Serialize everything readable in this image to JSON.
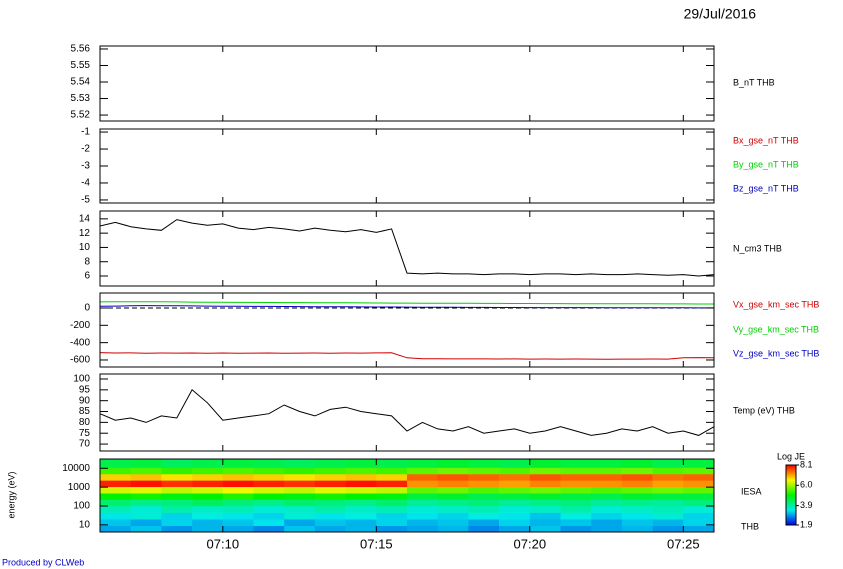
{
  "date": "29/Jul/2016",
  "footer": "Produced by CLWeb",
  "chart_data": [
    {
      "type": "line",
      "ylim": [
        5.5164,
        5.5618
      ],
      "yticks": [
        5.52,
        5.53,
        5.54,
        5.55,
        5.56
      ],
      "series": [
        {
          "name": "B_nT THB",
          "color": "#000000"
        }
      ]
    },
    {
      "type": "line",
      "ylim": [
        -5.18,
        -0.82
      ],
      "yticks": [
        -5,
        -4,
        -3,
        -2,
        -1
      ],
      "series": [
        {
          "name": "Bx_gse_nT THB",
          "color": "#d00000"
        },
        {
          "name": "By_gse_nT THB",
          "color": "#00d000"
        },
        {
          "name": "Bz_gse_nT THB",
          "color": "#0000c0"
        }
      ]
    },
    {
      "type": "line",
      "ylim": [
        4.6,
        15.1
      ],
      "yticks": [
        6,
        8,
        10,
        12,
        14
      ],
      "x": [
        426,
        426.5,
        427,
        427.5,
        428,
        428.5,
        429,
        429.5,
        430,
        430.5,
        431,
        431.5,
        432,
        432.5,
        433,
        433.5,
        434,
        434.5,
        435,
        435.5,
        436,
        436.5,
        437,
        437.5,
        438,
        438.5,
        439,
        439.5,
        440,
        440.5,
        441,
        441.5,
        442,
        442.5,
        443,
        443.5,
        444,
        444.5,
        445,
        445.5,
        446
      ],
      "series": [
        {
          "name": "N_cm3 THB",
          "color": "#000000",
          "values": [
            13.0,
            13.5,
            12.9,
            12.6,
            12.4,
            13.9,
            13.4,
            13.1,
            13.3,
            12.7,
            12.5,
            12.8,
            12.6,
            12.3,
            12.7,
            12.4,
            12.2,
            12.5,
            12.1,
            12.6,
            6.4,
            6.3,
            6.4,
            6.3,
            6.3,
            6.2,
            6.3,
            6.3,
            6.2,
            6.3,
            6.3,
            6.2,
            6.3,
            6.2,
            6.2,
            6.3,
            6.2,
            6.1,
            6.2,
            6.0,
            6.2
          ]
        }
      ]
    },
    {
      "type": "line",
      "ylim": [
        -681,
        173
      ],
      "yticks": [
        -600,
        -400,
        -200,
        0
      ],
      "reference_line": 0,
      "x": [
        426,
        426.5,
        427,
        427.5,
        428,
        428.5,
        429,
        429.5,
        430,
        430.5,
        431,
        431.5,
        432,
        432.5,
        433,
        433.5,
        434,
        434.5,
        435,
        435.5,
        436,
        436.5,
        437,
        437.5,
        438,
        438.5,
        439,
        439.5,
        440,
        440.5,
        441,
        441.5,
        442,
        442.5,
        443,
        443.5,
        444,
        444.5,
        445,
        445.5,
        446
      ],
      "series": [
        {
          "name": "Vx_gse_km_sec THB",
          "color": "#d00000",
          "values": [
            -515,
            -520,
            -518,
            -522,
            -520,
            -521,
            -519,
            -523,
            -520,
            -522,
            -521,
            -520,
            -523,
            -521,
            -519,
            -522,
            -520,
            -521,
            -518,
            -517,
            -575,
            -585,
            -586,
            -587,
            -588,
            -588,
            -589,
            -588,
            -590,
            -589,
            -590,
            -589,
            -590,
            -591,
            -590,
            -590,
            -589,
            -590,
            -575,
            -572,
            -575
          ]
        },
        {
          "name": "Vy_gse_km_sec THB",
          "color": "#00d000",
          "values": [
            70,
            72,
            73,
            72,
            71,
            70,
            68,
            67,
            66,
            65,
            64,
            63,
            62,
            62,
            61,
            60,
            60,
            59,
            58,
            57,
            56,
            55,
            55,
            54,
            54,
            53,
            53,
            52,
            52,
            51,
            51,
            50,
            50,
            49,
            49,
            48,
            48,
            47,
            47,
            46,
            46
          ]
        },
        {
          "name": "Vz_gse_km_sec THB",
          "color": "#0000c0",
          "values": [
            20,
            22,
            25,
            28,
            27,
            25,
            24,
            22,
            21,
            20,
            18,
            18,
            17,
            16,
            15,
            15,
            14,
            13,
            12,
            12,
            10,
            9,
            8,
            8,
            7,
            7,
            6,
            6,
            5,
            5,
            5,
            4,
            4,
            3,
            3,
            3,
            2,
            2,
            2,
            1,
            1
          ]
        }
      ]
    },
    {
      "type": "line",
      "ylim": [
        66.8,
        102.3
      ],
      "yticks": [
        70,
        75,
        80,
        85,
        90,
        95,
        100
      ],
      "x": [
        426,
        426.5,
        427,
        427.5,
        428,
        428.5,
        429,
        429.5,
        430,
        430.5,
        431,
        431.5,
        432,
        432.5,
        433,
        433.5,
        434,
        434.5,
        435,
        435.5,
        436,
        436.5,
        437,
        437.5,
        438,
        438.5,
        439,
        439.5,
        440,
        440.5,
        441,
        441.5,
        442,
        442.5,
        443,
        443.5,
        444,
        444.5,
        445,
        445.5,
        446
      ],
      "series": [
        {
          "name": "Temp (eV) THB",
          "color": "#000000",
          "values": [
            84,
            81,
            82,
            80,
            83,
            82,
            95,
            89,
            81,
            82,
            83,
            84,
            88,
            85,
            83,
            86,
            87,
            85,
            84,
            83,
            76,
            80,
            77,
            76,
            78,
            75,
            76,
            77,
            75,
            76,
            78,
            76,
            74,
            75,
            77,
            76,
            78,
            75,
            76,
            74,
            78
          ]
        }
      ]
    },
    {
      "type": "heatmap",
      "ylabel": "energy (eV)",
      "log_y": true,
      "ylim": [
        4.2,
        31000
      ],
      "yticks": [
        10,
        100,
        1000,
        10000
      ],
      "xlim": [
        426,
        446
      ],
      "xticks": [
        {
          "value": 430,
          "label": "07:10"
        },
        {
          "value": 435,
          "label": "07:15"
        },
        {
          "value": 440,
          "label": "07:20"
        },
        {
          "value": 445,
          "label": "07:25"
        }
      ],
      "right_labels": [
        "IESA",
        "THB"
      ],
      "colorbar": {
        "title": "Log JE",
        "limits": [
          1.9,
          8.1
        ],
        "ticks": [
          1.9,
          3.9,
          {
            "value": 6.0,
            "label": "6.0"
          },
          8.1
        ]
      },
      "x_bins": [
        426,
        427,
        428,
        429,
        430,
        431,
        432,
        433,
        434,
        435,
        436,
        437,
        438,
        439,
        440,
        441,
        442,
        443,
        444,
        445,
        446
      ],
      "y_bins": [
        4.2,
        9,
        20,
        45,
        100,
        220,
        480,
        1050,
        2300,
        5000,
        11000,
        31000
      ],
      "z": [
        [
          3.0,
          3.2,
          2.9,
          3.1,
          3.0,
          2.8,
          3.2,
          3.0,
          3.1,
          2.9,
          3.0,
          3.1,
          2.8,
          3.0,
          3.2,
          2.9,
          3.0,
          3.1,
          2.9,
          3.0
        ],
        [
          3.2,
          3.0,
          3.3,
          3.1,
          3.2,
          3.4,
          3.0,
          3.2,
          3.1,
          3.3,
          3.1,
          3.2,
          3.0,
          3.3,
          3.1,
          3.2,
          3.0,
          3.2,
          3.1,
          3.3
        ],
        [
          3.4,
          3.6,
          3.3,
          3.5,
          3.4,
          3.3,
          3.6,
          3.4,
          3.5,
          3.3,
          3.4,
          3.3,
          3.5,
          3.4,
          3.2,
          3.5,
          3.3,
          3.4,
          3.6,
          3.3
        ],
        [
          3.8,
          3.6,
          3.9,
          3.7,
          3.8,
          3.6,
          3.7,
          3.9,
          3.7,
          3.8,
          3.6,
          3.7,
          3.8,
          3.6,
          3.7,
          3.9,
          3.6,
          3.7,
          3.8,
          3.6
        ],
        [
          4.3,
          4.1,
          4.2,
          4.4,
          4.2,
          4.1,
          4.3,
          4.2,
          4.1,
          4.3,
          4.0,
          4.1,
          4.2,
          4.0,
          4.1,
          4.2,
          4.0,
          4.1,
          4.0,
          4.2
        ],
        [
          5.0,
          5.1,
          4.9,
          5.0,
          5.2,
          5.0,
          4.9,
          5.1,
          5.0,
          4.9,
          4.6,
          4.7,
          4.5,
          4.6,
          4.7,
          4.6,
          4.5,
          4.7,
          4.6,
          4.6
        ],
        [
          6.3,
          6.4,
          6.2,
          6.3,
          6.5,
          6.3,
          6.2,
          6.4,
          6.3,
          6.2,
          5.6,
          5.7,
          5.5,
          5.6,
          5.7,
          5.6,
          5.5,
          5.6,
          5.7,
          5.6
        ],
        [
          7.9,
          8.0,
          7.8,
          7.9,
          8.0,
          7.9,
          7.8,
          7.9,
          8.0,
          7.9,
          7.2,
          7.3,
          7.2,
          7.1,
          7.3,
          7.2,
          7.2,
          7.3,
          7.1,
          7.2
        ],
        [
          6.8,
          6.9,
          6.7,
          6.8,
          6.9,
          6.8,
          6.7,
          6.8,
          6.9,
          6.8,
          7.5,
          7.6,
          7.5,
          7.4,
          7.6,
          7.5,
          7.5,
          7.6,
          7.4,
          7.5
        ],
        [
          5.4,
          5.5,
          5.3,
          5.4,
          5.5,
          5.4,
          5.3,
          5.4,
          5.5,
          5.4,
          5.6,
          5.7,
          5.6,
          5.5,
          5.7,
          5.6,
          5.6,
          5.7,
          5.5,
          5.6
        ],
        [
          4.5,
          4.6,
          4.4,
          4.5,
          4.6,
          4.5,
          4.4,
          4.5,
          4.6,
          4.5,
          4.6,
          4.7,
          4.6,
          4.5,
          4.7,
          4.6,
          4.6,
          4.7,
          4.5,
          4.6
        ]
      ]
    }
  ]
}
